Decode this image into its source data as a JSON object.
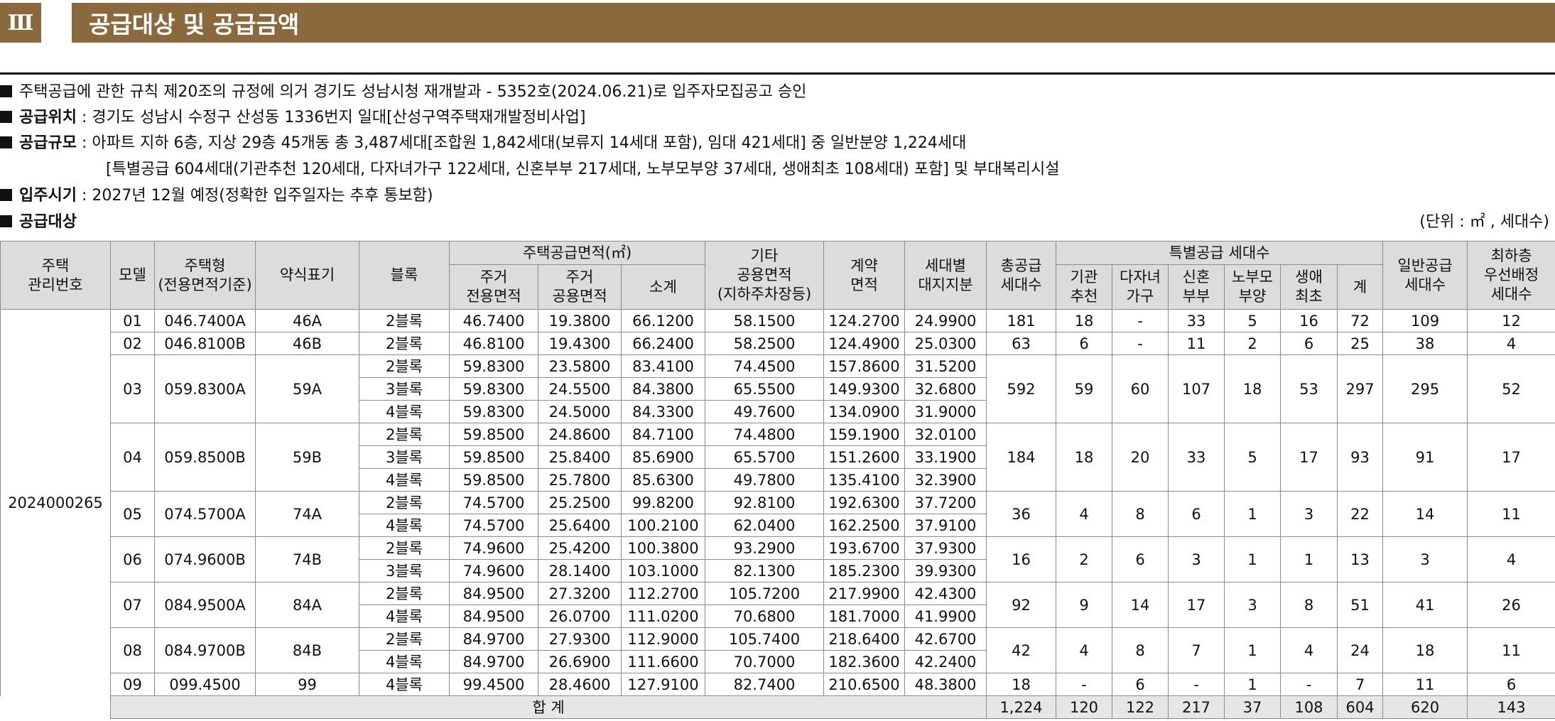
{
  "section": {
    "number": "Ⅲ",
    "title": "공급대상 및 공급금액"
  },
  "info": {
    "line1": "주택공급에 관한 규칙 제20조의 규정에 의거 경기도 성남시청 재개발과 - 5352호(2024.06.21)로 입주자모집공고 승인",
    "location_label": "공급위치",
    "location_text": " : 경기도 성남시 수정구 산성동 1336번지 일대[산성구역주택재개발정비사업]",
    "scale_label": "공급규모",
    "scale_text": " : 아파트 지하 6층, 지상 29층 45개동 총 3,487세대[조합원 1,842세대(보류지 14세대 포함), 임대 421세대] 중 일반분양 1,224세대",
    "scale_text2": "[특별공급 604세대(기관추천 120세대, 다자녀가구 122세대, 신혼부부 217세대, 노부모부양 37세대, 생애최초 108세대) 포함] 및 부대복리시설",
    "movein_label": "입주시기",
    "movein_text": " : 2027년 12월 예정(정확한 입주일자는 추후 통보함)",
    "target_label": "공급대상",
    "unit_note": "(단위 : ㎡ , 세대수)"
  },
  "table": {
    "headers": {
      "mgmt": "주택\n관리번호",
      "model": "모델",
      "type": "주택형\n(전용면적기준)",
      "abbr": "약식표기",
      "block": "블록",
      "area_group": "주택공급면적(㎡)",
      "excl": "주거\n전용면적",
      "common": "주거\n공용면적",
      "subtotal": "소계",
      "other": "기타\n공용면적\n(지하주차장등)",
      "contract": "계약\n면적",
      "land": "세대별\n대지지분",
      "total": "총공급\n세대수",
      "special_group": "특별공급 세대수",
      "inst": "기관\n추천",
      "multi": "다자녀\n가구",
      "newly": "신혼\n부부",
      "elder": "노부모\n부양",
      "first": "생애\n최초",
      "sp_sum": "계",
      "general": "일반공급\n세대수",
      "lowest": "최하층\n우선배정\n세대수"
    },
    "mgmt_no": "2024000265",
    "models": [
      {
        "model": "01",
        "type": "046.7400A",
        "abbr": "46A",
        "rows": [
          {
            "block": "2블록",
            "excl": "46.7400",
            "common": "19.3800",
            "subtotal": "66.1200",
            "other": "58.1500",
            "contract": "124.2700",
            "land": "24.9900"
          }
        ],
        "total": "181",
        "inst": "18",
        "multi": "-",
        "newly": "33",
        "elder": "5",
        "first": "16",
        "sp_sum": "72",
        "general": "109",
        "lowest": "12"
      },
      {
        "model": "02",
        "type": "046.8100B",
        "abbr": "46B",
        "rows": [
          {
            "block": "2블록",
            "excl": "46.8100",
            "common": "19.4300",
            "subtotal": "66.2400",
            "other": "58.2500",
            "contract": "124.4900",
            "land": "25.0300"
          }
        ],
        "total": "63",
        "inst": "6",
        "multi": "-",
        "newly": "11",
        "elder": "2",
        "first": "6",
        "sp_sum": "25",
        "general": "38",
        "lowest": "4"
      },
      {
        "model": "03",
        "type": "059.8300A",
        "abbr": "59A",
        "rows": [
          {
            "block": "2블록",
            "excl": "59.8300",
            "common": "23.5800",
            "subtotal": "83.4100",
            "other": "74.4500",
            "contract": "157.8600",
            "land": "31.5200"
          },
          {
            "block": "3블록",
            "excl": "59.8300",
            "common": "24.5500",
            "subtotal": "84.3800",
            "other": "65.5500",
            "contract": "149.9300",
            "land": "32.6800"
          },
          {
            "block": "4블록",
            "excl": "59.8300",
            "common": "24.5000",
            "subtotal": "84.3300",
            "other": "49.7600",
            "contract": "134.0900",
            "land": "31.9000"
          }
        ],
        "total": "592",
        "inst": "59",
        "multi": "60",
        "newly": "107",
        "elder": "18",
        "first": "53",
        "sp_sum": "297",
        "general": "295",
        "lowest": "52"
      },
      {
        "model": "04",
        "type": "059.8500B",
        "abbr": "59B",
        "rows": [
          {
            "block": "2블록",
            "excl": "59.8500",
            "common": "24.8600",
            "subtotal": "84.7100",
            "other": "74.4800",
            "contract": "159.1900",
            "land": "32.0100"
          },
          {
            "block": "3블록",
            "excl": "59.8500",
            "common": "25.8400",
            "subtotal": "85.6900",
            "other": "65.5700",
            "contract": "151.2600",
            "land": "33.1900"
          },
          {
            "block": "4블록",
            "excl": "59.8500",
            "common": "25.7800",
            "subtotal": "85.6300",
            "other": "49.7800",
            "contract": "135.4100",
            "land": "32.3900"
          }
        ],
        "total": "184",
        "inst": "18",
        "multi": "20",
        "newly": "33",
        "elder": "5",
        "first": "17",
        "sp_sum": "93",
        "general": "91",
        "lowest": "17"
      },
      {
        "model": "05",
        "type": "074.5700A",
        "abbr": "74A",
        "rows": [
          {
            "block": "2블록",
            "excl": "74.5700",
            "common": "25.2500",
            "subtotal": "99.8200",
            "other": "92.8100",
            "contract": "192.6300",
            "land": "37.7200"
          },
          {
            "block": "4블록",
            "excl": "74.5700",
            "common": "25.6400",
            "subtotal": "100.2100",
            "other": "62.0400",
            "contract": "162.2500",
            "land": "37.9100"
          }
        ],
        "total": "36",
        "inst": "4",
        "multi": "8",
        "newly": "6",
        "elder": "1",
        "first": "3",
        "sp_sum": "22",
        "general": "14",
        "lowest": "11"
      },
      {
        "model": "06",
        "type": "074.9600B",
        "abbr": "74B",
        "rows": [
          {
            "block": "2블록",
            "excl": "74.9600",
            "common": "25.4200",
            "subtotal": "100.3800",
            "other": "93.2900",
            "contract": "193.6700",
            "land": "37.9300"
          },
          {
            "block": "3블록",
            "excl": "74.9600",
            "common": "28.1400",
            "subtotal": "103.1000",
            "other": "82.1300",
            "contract": "185.2300",
            "land": "39.9300"
          }
        ],
        "total": "16",
        "inst": "2",
        "multi": "6",
        "newly": "3",
        "elder": "1",
        "first": "1",
        "sp_sum": "13",
        "general": "3",
        "lowest": "4"
      },
      {
        "model": "07",
        "type": "084.9500A",
        "abbr": "84A",
        "rows": [
          {
            "block": "2블록",
            "excl": "84.9500",
            "common": "27.3200",
            "subtotal": "112.2700",
            "other": "105.7200",
            "contract": "217.9900",
            "land": "42.4300"
          },
          {
            "block": "4블록",
            "excl": "84.9500",
            "common": "26.0700",
            "subtotal": "111.0200",
            "other": "70.6800",
            "contract": "181.7000",
            "land": "41.9900"
          }
        ],
        "total": "92",
        "inst": "9",
        "multi": "14",
        "newly": "17",
        "elder": "3",
        "first": "8",
        "sp_sum": "51",
        "general": "41",
        "lowest": "26"
      },
      {
        "model": "08",
        "type": "084.9700B",
        "abbr": "84B",
        "rows": [
          {
            "block": "2블록",
            "excl": "84.9700",
            "common": "27.9300",
            "subtotal": "112.9000",
            "other": "105.7400",
            "contract": "218.6400",
            "land": "42.6700"
          },
          {
            "block": "4블록",
            "excl": "84.9700",
            "common": "26.6900",
            "subtotal": "111.6600",
            "other": "70.7000",
            "contract": "182.3600",
            "land": "42.2400"
          }
        ],
        "total": "42",
        "inst": "4",
        "multi": "8",
        "newly": "7",
        "elder": "1",
        "first": "4",
        "sp_sum": "24",
        "general": "18",
        "lowest": "11"
      },
      {
        "model": "09",
        "type": "099.4500",
        "abbr": "99",
        "rows": [
          {
            "block": "4블록",
            "excl": "99.4500",
            "common": "28.4600",
            "subtotal": "127.9100",
            "other": "82.7400",
            "contract": "210.6500",
            "land": "48.3800"
          }
        ],
        "total": "18",
        "inst": "-",
        "multi": "6",
        "newly": "-",
        "elder": "1",
        "first": "-",
        "sp_sum": "7",
        "general": "11",
        "lowest": "6"
      }
    ],
    "footer": {
      "label": "합 계",
      "total": "1,224",
      "inst": "120",
      "multi": "122",
      "newly": "217",
      "elder": "37",
      "first": "108",
      "sp_sum": "604",
      "general": "620",
      "lowest": "143"
    }
  }
}
